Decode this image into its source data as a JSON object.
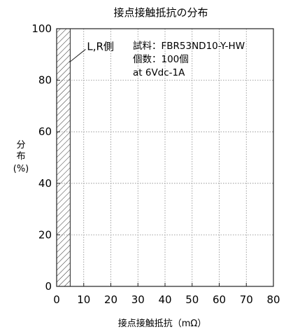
{
  "chart_data": {
    "type": "bar",
    "title": "接点接触抵抗の分布",
    "xlabel": "接点接触抵抗（mΩ）",
    "ylabel_lines": [
      "分",
      "布",
      "(%)"
    ],
    "xlim": [
      0,
      80
    ],
    "ylim": [
      0,
      100
    ],
    "xticks": [
      0,
      10,
      20,
      30,
      40,
      50,
      60,
      70,
      80
    ],
    "yticks": [
      0,
      20,
      40,
      60,
      80,
      100
    ],
    "grid": true,
    "bins": [
      {
        "x_from": 0,
        "x_to": 5,
        "value": 100,
        "label": "L,R側"
      }
    ],
    "annotations": [
      "試料：FBR53ND10-Y-HW",
      "個数：100個",
      "at 6Vdc-1A"
    ]
  }
}
